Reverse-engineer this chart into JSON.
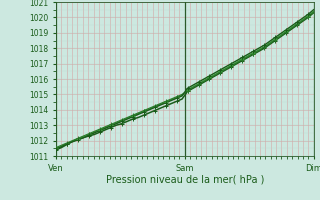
{
  "xlabel": "Pression niveau de la mer( hPa )",
  "ylim": [
    1011,
    1021
  ],
  "xlim": [
    0,
    48
  ],
  "yticks": [
    1011,
    1012,
    1013,
    1014,
    1015,
    1016,
    1017,
    1018,
    1019,
    1020,
    1021
  ],
  "xtick_positions": [
    0,
    24,
    48
  ],
  "xtick_labels": [
    "Ven",
    "Sam",
    "Dim"
  ],
  "bg_color": "#cce8e0",
  "grid_color_v": "#d4a0a0",
  "grid_color_h": "#b8d8d0",
  "line_color_dark": "#1a5c1a",
  "line_color_mid": "#2a7a2a",
  "line_color_light": "#3a9a3a",
  "vline_color": "#2a5a2a",
  "series1": [
    1011.4,
    1011.55,
    1011.75,
    1011.95,
    1012.1,
    1012.2,
    1012.3,
    1012.4,
    1012.55,
    1012.7,
    1012.85,
    1013.0,
    1013.1,
    1013.25,
    1013.4,
    1013.5,
    1013.65,
    1013.8,
    1013.95,
    1014.1,
    1014.25,
    1014.4,
    1014.55,
    1014.7,
    1015.2,
    1015.4,
    1015.6,
    1015.8,
    1016.0,
    1016.2,
    1016.4,
    1016.6,
    1016.8,
    1017.0,
    1017.2,
    1017.4,
    1017.6,
    1017.8,
    1018.0,
    1018.25,
    1018.5,
    1018.75,
    1019.0,
    1019.25,
    1019.5,
    1019.75,
    1020.0,
    1020.3
  ],
  "series2": [
    1011.5,
    1011.65,
    1011.8,
    1011.95,
    1012.1,
    1012.25,
    1012.4,
    1012.55,
    1012.7,
    1012.85,
    1013.0,
    1013.15,
    1013.3,
    1013.45,
    1013.6,
    1013.75,
    1013.9,
    1014.05,
    1014.2,
    1014.35,
    1014.5,
    1014.65,
    1014.8,
    1014.95,
    1015.3,
    1015.5,
    1015.7,
    1015.9,
    1016.1,
    1016.3,
    1016.5,
    1016.7,
    1016.9,
    1017.1,
    1017.3,
    1017.5,
    1017.7,
    1017.9,
    1018.1,
    1018.35,
    1018.6,
    1018.85,
    1019.1,
    1019.35,
    1019.6,
    1019.85,
    1020.1,
    1020.4
  ],
  "series3": [
    1011.55,
    1011.7,
    1011.85,
    1012.0,
    1012.15,
    1012.3,
    1012.45,
    1012.6,
    1012.75,
    1012.9,
    1013.05,
    1013.2,
    1013.35,
    1013.5,
    1013.65,
    1013.8,
    1013.95,
    1014.1,
    1014.25,
    1014.4,
    1014.55,
    1014.7,
    1014.85,
    1015.0,
    1015.25,
    1015.45,
    1015.65,
    1015.85,
    1016.05,
    1016.25,
    1016.45,
    1016.65,
    1016.85,
    1017.05,
    1017.25,
    1017.45,
    1017.65,
    1017.85,
    1018.05,
    1018.3,
    1018.55,
    1018.8,
    1019.05,
    1019.3,
    1019.55,
    1019.8,
    1020.05,
    1020.35
  ],
  "series4": [
    1011.45,
    1011.6,
    1011.78,
    1011.92,
    1012.05,
    1012.18,
    1012.35,
    1012.5,
    1012.65,
    1012.8,
    1012.95,
    1013.1,
    1013.25,
    1013.4,
    1013.55,
    1013.7,
    1013.85,
    1014.0,
    1014.15,
    1014.3,
    1014.45,
    1014.6,
    1014.75,
    1014.9,
    1015.4,
    1015.6,
    1015.8,
    1016.0,
    1016.2,
    1016.4,
    1016.6,
    1016.8,
    1017.0,
    1017.2,
    1017.4,
    1017.6,
    1017.8,
    1018.0,
    1018.2,
    1018.45,
    1018.7,
    1018.95,
    1019.2,
    1019.45,
    1019.7,
    1019.95,
    1020.2,
    1020.5
  ]
}
